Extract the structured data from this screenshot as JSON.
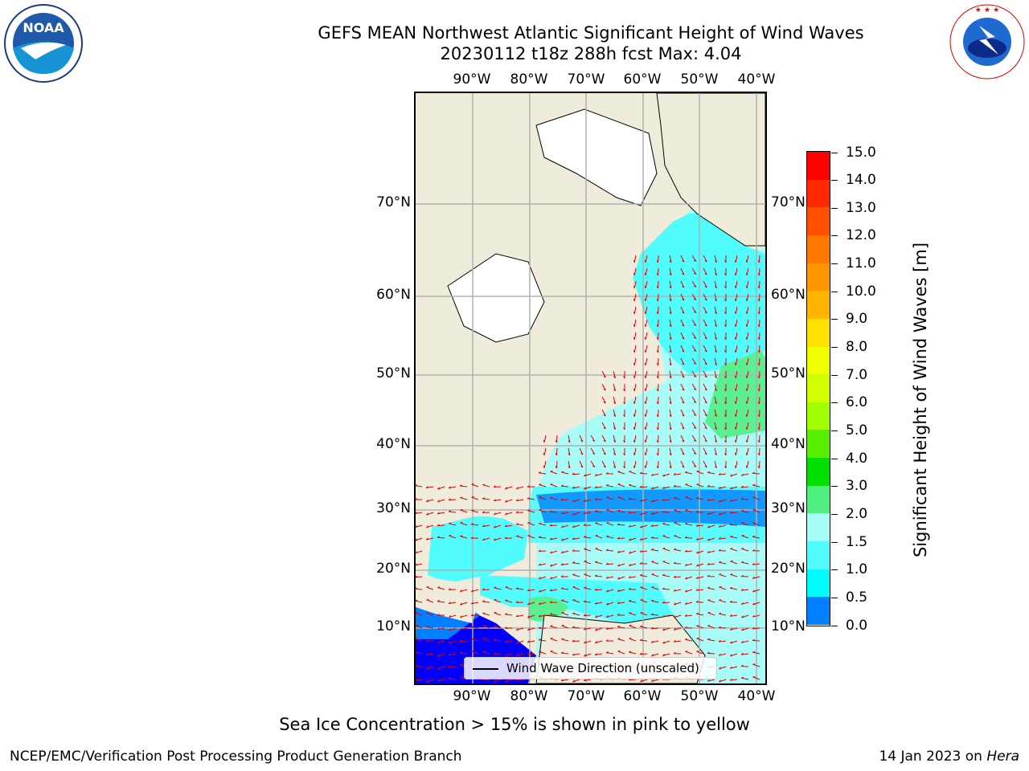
{
  "title_line1": "GEFS MEAN Northwest Atlantic Significant Height of Wind Waves",
  "title_line2": "20230112 t18z 288h fcst   Max: 4.04",
  "lon_labels": [
    "90°W",
    "80°W",
    "70°W",
    "60°W",
    "50°W",
    "40°W"
  ],
  "lat_labels": [
    "70°N",
    "60°N",
    "50°N",
    "40°N",
    "30°N",
    "20°N",
    "10°N"
  ],
  "colorbar": {
    "title": "Significant Height of Wind Waves [m]",
    "ticks": [
      "15.0",
      "14.0",
      "13.0",
      "12.0",
      "11.0",
      "10.0",
      "9.0",
      "8.0",
      "7.0",
      "6.0",
      "5.0",
      "4.0",
      "3.0",
      "2.0",
      "1.5",
      "1.0",
      "0.5",
      "0.0"
    ],
    "colors": [
      "#ff0000",
      "#ff2800",
      "#ff5000",
      "#ff7800",
      "#ff9600",
      "#ffb400",
      "#ffe000",
      "#f0ff00",
      "#d2ff00",
      "#a0ff00",
      "#58f000",
      "#00e000",
      "#50f080",
      "#a8fcf8",
      "#50fcfc",
      "#00fcfc",
      "#0080ff",
      "#0000fa"
    ]
  },
  "legend_label": "Wind Wave Direction (unscaled)",
  "footnote": "Sea Ice Concentration > 15% is shown in pink to yellow",
  "footer_left": "NCEP/EMC/Verification Post Processing Product Generation Branch",
  "footer_right_date": "14 Jan 2023 on ",
  "footer_right_host": "Hera",
  "logos": {
    "noaa": "NOAA",
    "nws": "NATIONAL WEATHER SERVICE"
  }
}
